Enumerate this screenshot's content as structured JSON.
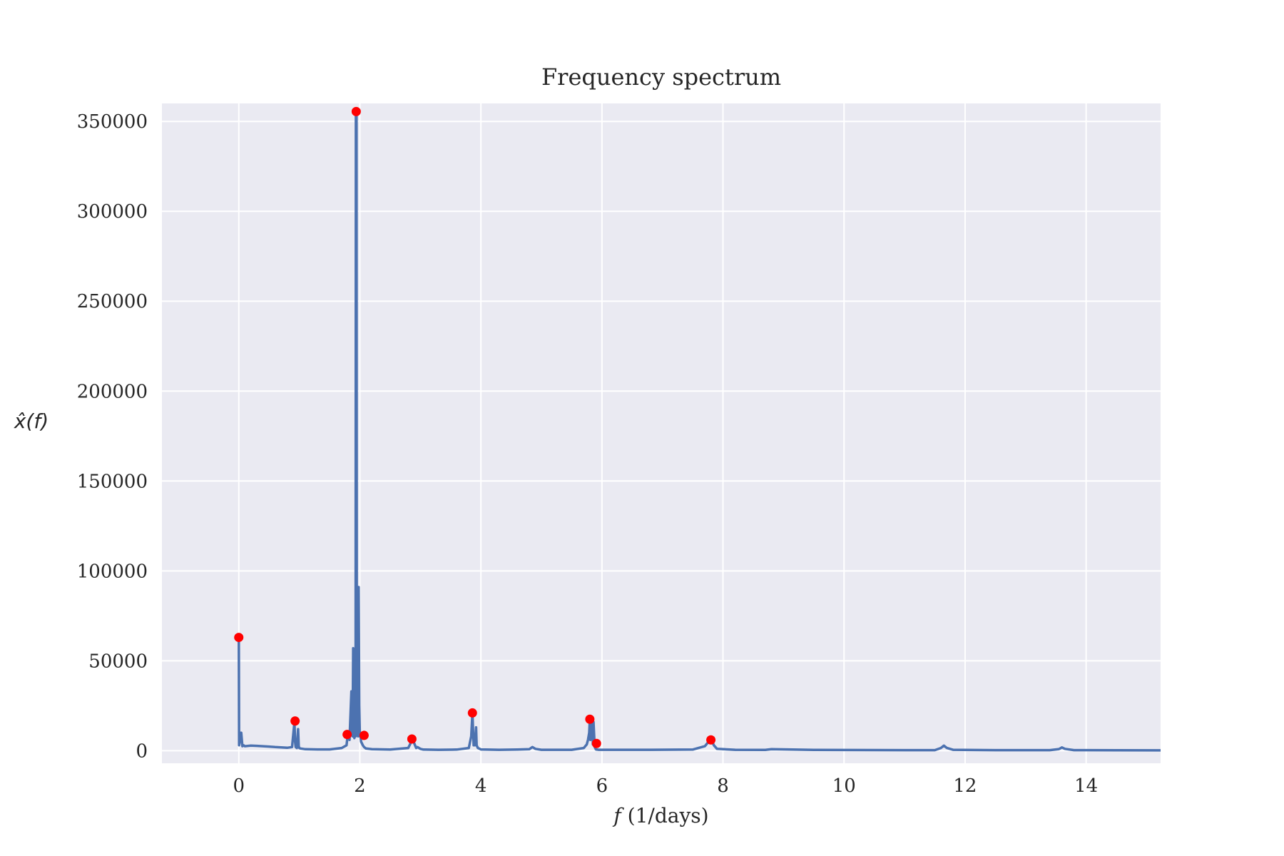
{
  "chart_data": {
    "type": "line",
    "title": "Frequency spectrum",
    "xlabel_symbol": "f",
    "xlabel_units": " (1/days)",
    "ylabel": "x̂(f)",
    "xlim": [
      -1.27,
      15.23
    ],
    "ylim": [
      -7000,
      360000
    ],
    "grid": true,
    "x_ticks": [
      0,
      2,
      4,
      6,
      8,
      10,
      12,
      14
    ],
    "y_ticks": [
      0,
      50000,
      100000,
      150000,
      200000,
      250000,
      300000,
      350000
    ],
    "colors": {
      "line": "#4c72b0",
      "peaks": "#ff0000",
      "plot_bg": "#eaeaf2",
      "grid": "#ffffff",
      "text": "#262626"
    },
    "series": [
      {
        "type": "line",
        "x": [
          0.0,
          0.005,
          0.04,
          0.06,
          0.08,
          0.1,
          0.2,
          0.3,
          0.4,
          0.5,
          0.6,
          0.7,
          0.8,
          0.88,
          0.92,
          0.93,
          0.94,
          0.96,
          0.98,
          0.99,
          1.0,
          1.02,
          1.1,
          1.3,
          1.5,
          1.7,
          1.78,
          1.8,
          1.83,
          1.86,
          1.87,
          1.88,
          1.89,
          1.9,
          1.91,
          1.92,
          1.93,
          1.935,
          1.945,
          1.95,
          1.96,
          1.97,
          1.98,
          1.99,
          2.0,
          2.01,
          2.02,
          2.05,
          2.07,
          2.1,
          2.2,
          2.5,
          2.8,
          2.85,
          2.87,
          2.9,
          2.93,
          2.95,
          3.0,
          3.05,
          3.3,
          3.6,
          3.8,
          3.84,
          3.86,
          3.87,
          3.88,
          3.9,
          3.92,
          3.93,
          3.95,
          4.0,
          4.3,
          4.6,
          4.8,
          4.85,
          4.9,
          5.0,
          5.5,
          5.7,
          5.75,
          5.77,
          5.79,
          5.8,
          5.81,
          5.82,
          5.84,
          5.85,
          5.86,
          5.88,
          5.9,
          5.95,
          6.2,
          6.8,
          7.5,
          7.7,
          7.75,
          7.78,
          7.8,
          7.82,
          7.85,
          7.9,
          8.2,
          8.7,
          8.8,
          9.5,
          10.5,
          11.0,
          11.5,
          11.6,
          11.65,
          11.7,
          11.8,
          12.5,
          13.4,
          13.55,
          13.6,
          13.65,
          13.8,
          14.5,
          15.23
        ],
        "y": [
          63000,
          3000,
          10000,
          2500,
          3000,
          2500,
          2800,
          2700,
          2500,
          2300,
          2000,
          1800,
          1600,
          2000,
          16000,
          5000,
          2000,
          1500,
          12000,
          2500,
          1500,
          1200,
          800,
          700,
          700,
          1500,
          3000,
          9000,
          6000,
          33000,
          12000,
          8000,
          57000,
          10000,
          7000,
          9000,
          8000,
          356000,
          356000,
          10000,
          30000,
          8000,
          91000,
          25000,
          8000,
          9000,
          5000,
          3000,
          2000,
          1200,
          800,
          600,
          1500,
          5000,
          7000,
          4000,
          1500,
          2000,
          1000,
          600,
          500,
          600,
          1500,
          8000,
          21000,
          12000,
          3000,
          3000,
          13000,
          3000,
          1500,
          700,
          500,
          600,
          800,
          2000,
          1000,
          500,
          500,
          1500,
          3500,
          6000,
          10000,
          17500,
          6000,
          8000,
          17000,
          3500,
          16000,
          2000,
          700,
          500,
          500,
          500,
          600,
          2500,
          4500,
          6000,
          6000,
          5000,
          3000,
          1000,
          500,
          400,
          800,
          400,
          350,
          300,
          300,
          1500,
          2800,
          1500,
          500,
          300,
          300,
          900,
          1800,
          1000,
          300,
          250,
          200
        ]
      },
      {
        "type": "scatter",
        "name": "peaks",
        "x": [
          0.0,
          0.93,
          1.79,
          1.94,
          2.07,
          2.86,
          3.86,
          5.8,
          5.91,
          7.8
        ],
        "y": [
          63000,
          16500,
          9000,
          355500,
          8500,
          6500,
          21000,
          17500,
          4000,
          6000
        ]
      }
    ]
  }
}
